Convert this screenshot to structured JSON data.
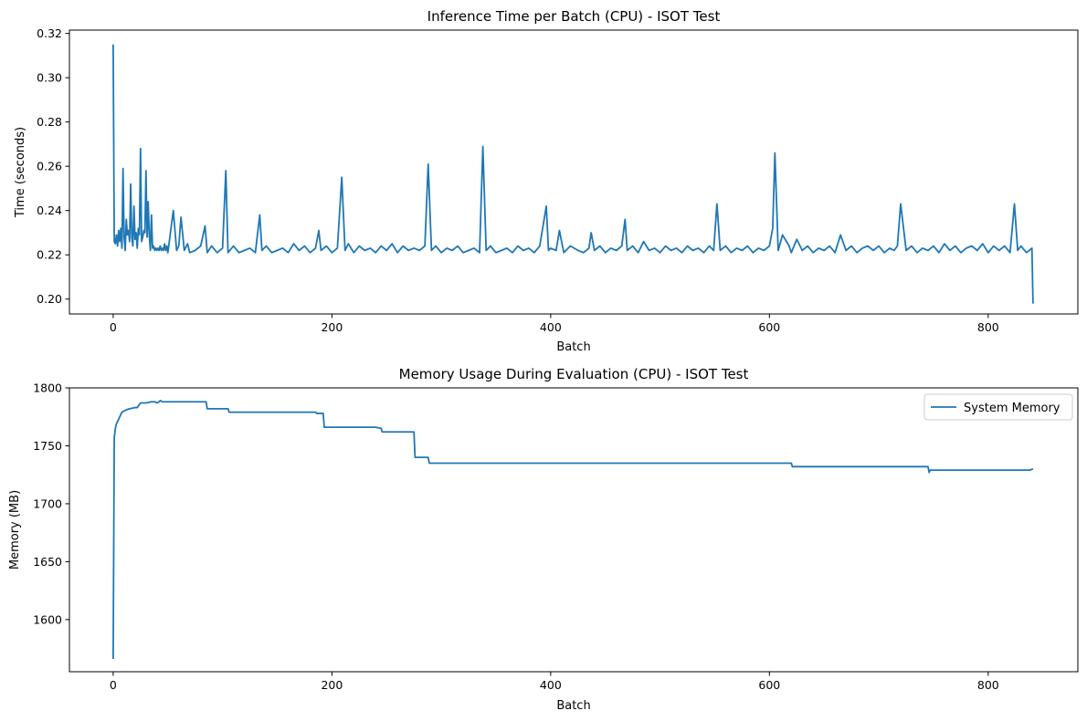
{
  "chart_data": [
    {
      "type": "line",
      "title": "Inference Time per Batch (CPU) - ISOT Test",
      "xlabel": "Batch",
      "ylabel": "Time (seconds)",
      "xlim": [
        -40,
        882
      ],
      "ylim": [
        0.1933,
        0.3215
      ],
      "xticks": [
        0,
        200,
        400,
        600,
        800
      ],
      "xtick_labels": [
        "0",
        "200",
        "400",
        "600",
        "800"
      ],
      "yticks": [
        0.2,
        0.22,
        0.24,
        0.26,
        0.28,
        0.3,
        0.32
      ],
      "ytick_labels": [
        "0.20",
        "0.22",
        "0.24",
        "0.26",
        "0.28",
        "0.30",
        "0.32"
      ],
      "grid": false,
      "legend": null,
      "color": "#1f77b4",
      "series": [
        {
          "x": [
            0,
            1,
            2,
            3,
            4,
            5,
            6,
            7,
            8,
            9,
            10,
            11,
            12,
            13,
            14,
            15,
            16,
            17,
            18,
            19,
            20,
            21,
            22,
            23,
            24,
            25,
            26,
            27,
            28,
            29,
            30,
            31,
            32,
            33,
            34,
            35,
            36,
            37,
            38,
            39,
            40,
            41,
            42,
            43,
            44,
            45,
            46,
            47,
            48,
            49,
            50,
            55,
            58,
            60,
            62,
            65,
            68,
            70,
            75,
            80,
            84,
            86,
            90,
            95,
            100,
            103,
            105,
            110,
            115,
            120,
            125,
            130,
            134,
            136,
            140,
            145,
            150,
            155,
            160,
            165,
            170,
            175,
            180,
            185,
            188,
            190,
            195,
            200,
            205,
            209,
            212,
            215,
            220,
            225,
            230,
            235,
            240,
            245,
            250,
            255,
            260,
            265,
            270,
            275,
            280,
            285,
            288,
            291,
            295,
            300,
            305,
            310,
            315,
            320,
            325,
            330,
            335,
            338,
            341,
            345,
            350,
            355,
            360,
            365,
            370,
            375,
            380,
            385,
            390,
            396,
            398,
            400,
            405,
            408,
            412,
            418,
            425,
            430,
            435,
            437,
            440,
            445,
            450,
            455,
            460,
            465,
            468,
            470,
            475,
            480,
            485,
            490,
            495,
            500,
            505,
            510,
            515,
            520,
            525,
            530,
            535,
            540,
            545,
            549,
            552,
            555,
            560,
            565,
            570,
            575,
            580,
            585,
            590,
            595,
            600,
            603,
            605,
            608,
            612,
            618,
            620,
            625,
            630,
            635,
            640,
            645,
            650,
            655,
            660,
            665,
            670,
            675,
            680,
            685,
            690,
            695,
            700,
            705,
            710,
            714,
            717,
            720,
            725,
            730,
            735,
            740,
            745,
            750,
            755,
            760,
            765,
            770,
            775,
            780,
            785,
            790,
            795,
            800,
            805,
            810,
            815,
            820,
            824,
            827,
            830,
            835,
            840,
            841
          ],
          "y": [
            0.315,
            0.226,
            0.225,
            0.229,
            0.224,
            0.231,
            0.226,
            0.232,
            0.223,
            0.259,
            0.228,
            0.222,
            0.236,
            0.229,
            0.231,
            0.226,
            0.252,
            0.228,
            0.224,
            0.242,
            0.227,
            0.23,
            0.223,
            0.232,
            0.229,
            0.268,
            0.226,
            0.228,
            0.231,
            0.23,
            0.258,
            0.228,
            0.244,
            0.229,
            0.222,
            0.238,
            0.223,
            0.224,
            0.222,
            0.223,
            0.222,
            0.223,
            0.222,
            0.224,
            0.222,
            0.223,
            0.222,
            0.225,
            0.222,
            0.224,
            0.221,
            0.24,
            0.222,
            0.224,
            0.237,
            0.222,
            0.225,
            0.221,
            0.222,
            0.224,
            0.233,
            0.221,
            0.224,
            0.221,
            0.223,
            0.258,
            0.221,
            0.224,
            0.221,
            0.222,
            0.223,
            0.221,
            0.238,
            0.222,
            0.224,
            0.221,
            0.222,
            0.223,
            0.221,
            0.225,
            0.222,
            0.224,
            0.221,
            0.223,
            0.231,
            0.222,
            0.224,
            0.221,
            0.223,
            0.255,
            0.222,
            0.225,
            0.221,
            0.224,
            0.222,
            0.223,
            0.221,
            0.224,
            0.222,
            0.225,
            0.221,
            0.224,
            0.222,
            0.223,
            0.222,
            0.224,
            0.261,
            0.222,
            0.224,
            0.221,
            0.223,
            0.222,
            0.224,
            0.221,
            0.222,
            0.223,
            0.221,
            0.269,
            0.222,
            0.224,
            0.221,
            0.222,
            0.223,
            0.221,
            0.224,
            0.222,
            0.223,
            0.221,
            0.224,
            0.242,
            0.222,
            0.223,
            0.222,
            0.231,
            0.221,
            0.224,
            0.222,
            0.221,
            0.223,
            0.23,
            0.222,
            0.224,
            0.221,
            0.223,
            0.222,
            0.224,
            0.236,
            0.222,
            0.224,
            0.221,
            0.226,
            0.222,
            0.223,
            0.221,
            0.224,
            0.222,
            0.223,
            0.221,
            0.224,
            0.222,
            0.223,
            0.221,
            0.224,
            0.222,
            0.243,
            0.222,
            0.224,
            0.221,
            0.223,
            0.222,
            0.224,
            0.221,
            0.223,
            0.222,
            0.224,
            0.232,
            0.266,
            0.222,
            0.229,
            0.224,
            0.221,
            0.227,
            0.222,
            0.224,
            0.221,
            0.223,
            0.222,
            0.224,
            0.221,
            0.229,
            0.222,
            0.224,
            0.221,
            0.223,
            0.224,
            0.222,
            0.224,
            0.221,
            0.223,
            0.222,
            0.224,
            0.243,
            0.222,
            0.224,
            0.221,
            0.223,
            0.222,
            0.224,
            0.221,
            0.225,
            0.222,
            0.224,
            0.221,
            0.223,
            0.224,
            0.222,
            0.225,
            0.221,
            0.224,
            0.222,
            0.224,
            0.221,
            0.243,
            0.222,
            0.224,
            0.221,
            0.223,
            0.198
          ]
        }
      ]
    },
    {
      "type": "line",
      "title": "Memory Usage During Evaluation (CPU) - ISOT Test",
      "xlabel": "Batch",
      "ylabel": "Memory (MB)",
      "xlim": [
        -40,
        882
      ],
      "ylim": [
        1555,
        1800
      ],
      "xticks": [
        0,
        200,
        400,
        600,
        800
      ],
      "xtick_labels": [
        "0",
        "200",
        "400",
        "600",
        "800"
      ],
      "yticks": [
        1600,
        1650,
        1700,
        1750,
        1800
      ],
      "ytick_labels": [
        "1600",
        "1650",
        "1700",
        "1750",
        "1800"
      ],
      "grid": false,
      "legend": "top-right",
      "color": "#1f77b4",
      "series": [
        {
          "name": "System Memory",
          "x": [
            0,
            1,
            2,
            3,
            4,
            5,
            6,
            8,
            10,
            12,
            15,
            20,
            22,
            25,
            30,
            35,
            38,
            40,
            42,
            43,
            45,
            50,
            60,
            80,
            85,
            86,
            90,
            100,
            105,
            106,
            150,
            185,
            186,
            190,
            192,
            193,
            200,
            240,
            245,
            246,
            250,
            275,
            276,
            280,
            288,
            289,
            290,
            300,
            350,
            400,
            450,
            500,
            550,
            600,
            620,
            621,
            700,
            745,
            746,
            747,
            750,
            800,
            838,
            841
          ],
          "y": [
            1566,
            1757,
            1765,
            1769,
            1771,
            1773,
            1775,
            1779,
            1780,
            1781,
            1782,
            1783,
            1783,
            1787,
            1787,
            1788,
            1788,
            1787,
            1788,
            1789,
            1788,
            1788,
            1788,
            1788,
            1788,
            1782,
            1782,
            1782,
            1782,
            1779,
            1779,
            1779,
            1778,
            1778,
            1778,
            1766,
            1766,
            1766,
            1765,
            1762,
            1762,
            1762,
            1740,
            1740,
            1740,
            1735,
            1735,
            1735,
            1735,
            1735,
            1735,
            1735,
            1735,
            1735,
            1735,
            1732,
            1732,
            1732,
            1727,
            1729,
            1729,
            1729,
            1729,
            1730
          ]
        }
      ]
    }
  ]
}
